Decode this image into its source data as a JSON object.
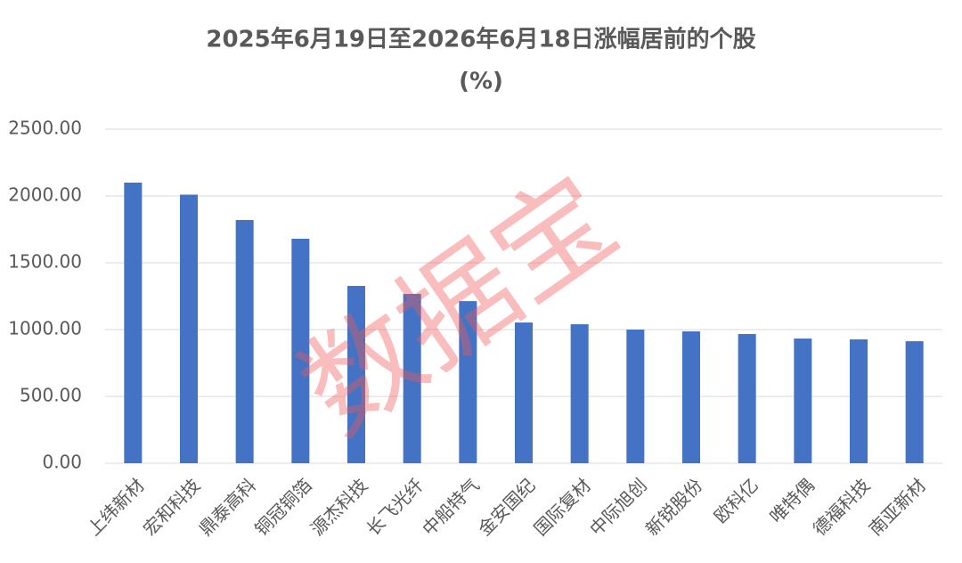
{
  "chart_data": {
    "type": "bar",
    "title": "2025年6月19日至2026年6月18日涨幅居前的个股",
    "subtitle": "(%)",
    "categories": [
      "上纬新材",
      "宏和科技",
      "鼎泰高科",
      "铜冠铜箔",
      "源杰科技",
      "长飞光纤",
      "中船特气",
      "金安国纪",
      "国际复材",
      "中际旭创",
      "新锐股份",
      "欧科亿",
      "唯特偶",
      "德福科技",
      "南亚新材"
    ],
    "values": [
      2100,
      2010,
      1820,
      1680,
      1327,
      1267,
      1213,
      1053,
      1040,
      1000,
      987,
      967,
      933,
      927,
      913
    ],
    "color": "#4472c4",
    "ylim": [
      0,
      2500
    ],
    "yticks": [
      {
        "value": 0,
        "label": "0.00"
      },
      {
        "value": 500,
        "label": "500.00"
      },
      {
        "value": 1000,
        "label": "1000.00"
      },
      {
        "value": 1500,
        "label": "1500.00"
      },
      {
        "value": 2000,
        "label": "2000.00"
      },
      {
        "value": 2500,
        "label": "2500.00"
      }
    ],
    "grid": true,
    "watermark": "数据宝"
  }
}
